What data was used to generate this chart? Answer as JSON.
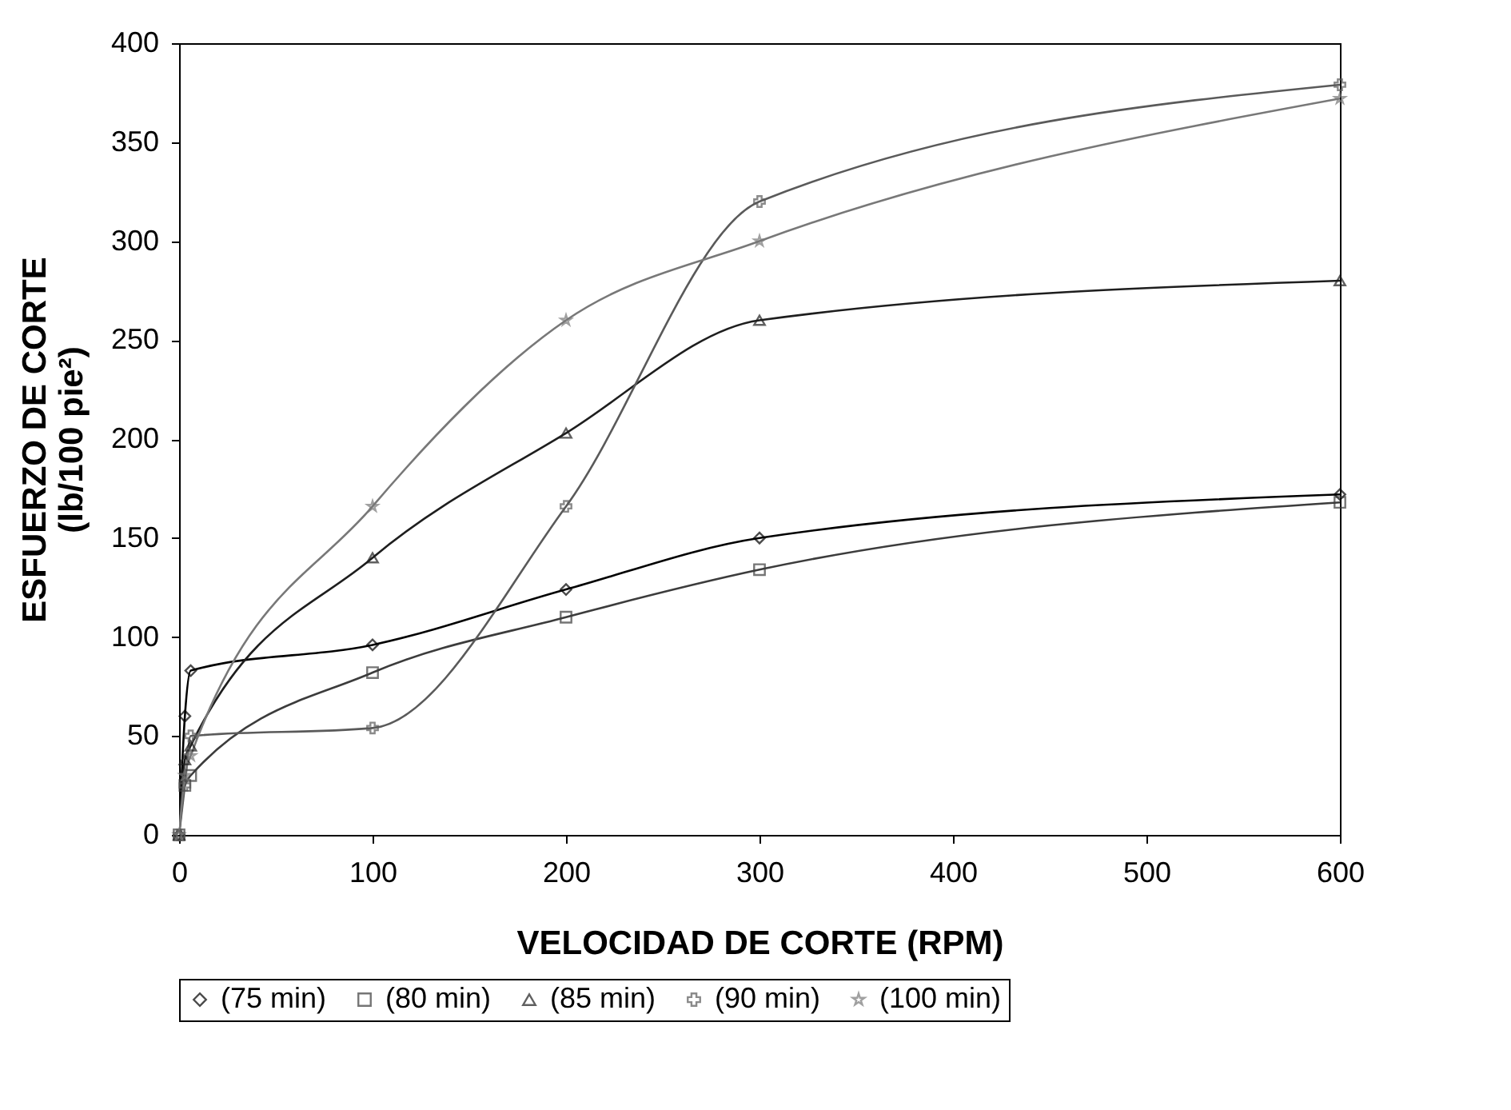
{
  "chart_data": {
    "type": "line",
    "xlabel": "VELOCIDAD DE CORTE (RPM)",
    "ylabel": "ESFUERZO DE CORTE\n(lb/100 pie²)",
    "x": [
      0,
      3,
      6,
      100,
      200,
      300,
      600
    ],
    "series": [
      {
        "name": "(75 min)",
        "color": "#000000",
        "marker": "diamond",
        "values": [
          0,
          60,
          83,
          96,
          124,
          150,
          172
        ]
      },
      {
        "name": "(80 min)",
        "color": "#3c3c3c",
        "marker": "square",
        "values": [
          0,
          25,
          30,
          82,
          110,
          134,
          168
        ]
      },
      {
        "name": "(85 min)",
        "color": "#1e1e1e",
        "marker": "triangle",
        "values": [
          0,
          38,
          45,
          140,
          203,
          260,
          280
        ]
      },
      {
        "name": "(90 min)",
        "color": "#5a5a5a",
        "marker": "cross",
        "values": [
          0,
          25,
          50,
          54,
          166,
          320,
          379
        ]
      },
      {
        "name": "(100 min)",
        "color": "#787878",
        "marker": "star",
        "values": [
          0,
          30,
          40,
          166,
          260,
          300,
          372
        ]
      }
    ],
    "xlim": [
      0,
      600
    ],
    "xticks": [
      0,
      100,
      200,
      300,
      400,
      500,
      600
    ],
    "ylim": [
      0,
      400
    ],
    "yticks": [
      0,
      50,
      100,
      150,
      200,
      250,
      300,
      350,
      400
    ],
    "grid": false,
    "legend": "bottom",
    "line_style": "solid"
  }
}
